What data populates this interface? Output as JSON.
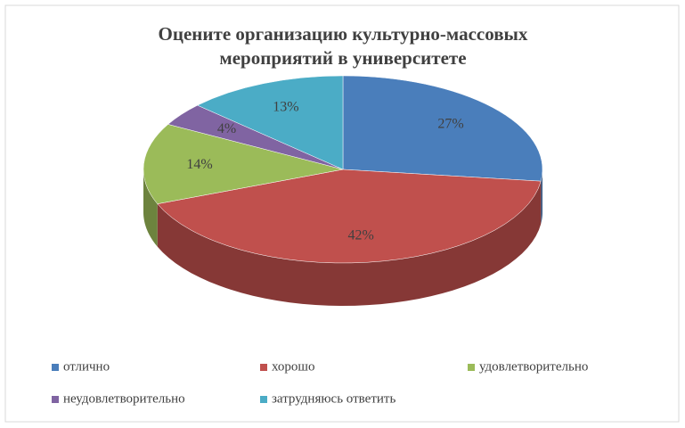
{
  "chart_data": {
    "type": "pie3d",
    "title": [
      "Оцените организацию культурно-массовых",
      "мероприятий в университете"
    ],
    "categories": [
      "отлично",
      "хорошо",
      "удовлетворительно",
      "неудовлетворительно",
      "затрудняюсь ответить"
    ],
    "values": [
      27,
      42,
      14,
      4,
      13
    ],
    "value_labels": [
      "27%",
      "42%",
      "14%",
      "4%",
      "13%"
    ],
    "colors": [
      "#4a7ebb",
      "#c0504d",
      "#9bbb59",
      "#8064a2",
      "#4bacc6"
    ],
    "legend": "bottom"
  }
}
